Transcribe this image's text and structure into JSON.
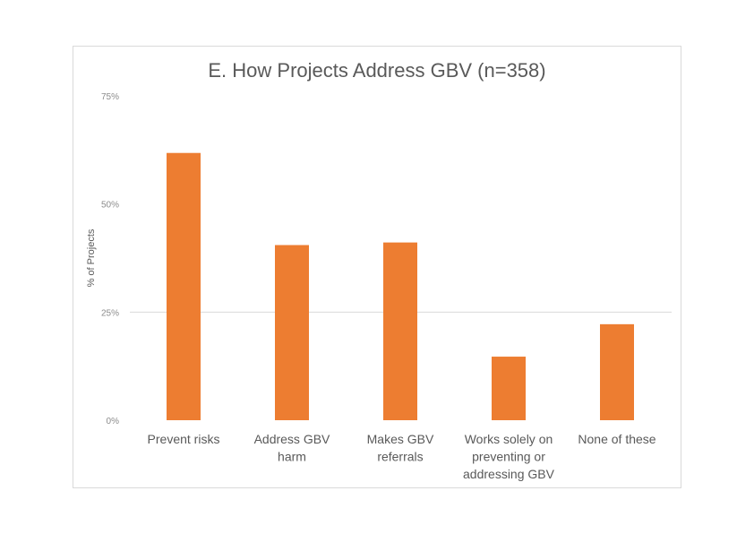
{
  "chart_data": {
    "type": "bar",
    "title": "E. How Projects Address GBV (n=358)",
    "xlabel": "",
    "ylabel": "% of Projects",
    "ylim": [
      0,
      75
    ],
    "yticks": [
      "0%",
      "25%",
      "50%",
      "75%"
    ],
    "ytick_values": [
      0,
      25,
      50,
      75
    ],
    "grid": "25% line only",
    "categories": [
      [
        "Prevent risks"
      ],
      [
        "Address GBV",
        "harm"
      ],
      [
        "Makes GBV",
        "referrals"
      ],
      [
        "Works solely on",
        "preventing or",
        "addressing GBV"
      ],
      [
        "None of these"
      ]
    ],
    "values": [
      61.8,
      40.5,
      41.1,
      14.7,
      22.2
    ],
    "bar_color": "#ed7d31",
    "legend": "none"
  }
}
